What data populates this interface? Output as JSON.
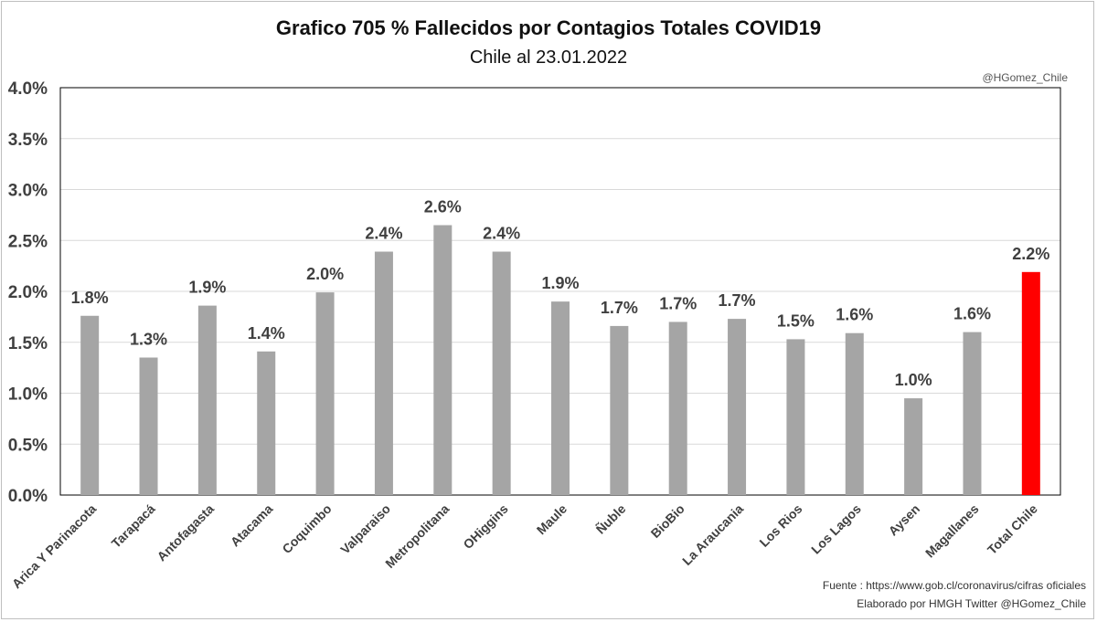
{
  "chart_data": {
    "type": "bar",
    "title": "Grafico 705 % Fallecidos por Contagios Totales COVID19",
    "subtitle": "Chile al 23.01.2022",
    "watermark": "@HGomez_Chile",
    "xlabel": "",
    "ylabel": "",
    "ylim": [
      0,
      4.0
    ],
    "yticks": [
      "0.0%",
      "0.5%",
      "1.0%",
      "1.5%",
      "2.0%",
      "2.5%",
      "3.0%",
      "3.5%",
      "4.0%"
    ],
    "ytick_values": [
      0,
      0.5,
      1.0,
      1.5,
      2.0,
      2.5,
      3.0,
      3.5,
      4.0
    ],
    "grid": true,
    "categories": [
      "Arica Y Parinacota",
      "Tarapacá",
      "Antofagasta",
      "Atacama",
      "Coquimbo",
      "Valparaiso",
      "Metropolitana",
      "OHiggins",
      "Maule",
      "Ñuble",
      "BioBio",
      "La Araucania",
      "Los Rios",
      "Los Lagos",
      "Aysen",
      "Magallanes",
      "Total Chile"
    ],
    "values": [
      1.76,
      1.35,
      1.86,
      1.41,
      1.99,
      2.39,
      2.65,
      2.39,
      1.9,
      1.66,
      1.7,
      1.73,
      1.53,
      1.59,
      0.95,
      1.6,
      2.19
    ],
    "value_labels": [
      "1.8%",
      "1.3%",
      "1.9%",
      "1.4%",
      "2.0%",
      "2.4%",
      "2.6%",
      "2.4%",
      "1.9%",
      "1.7%",
      "1.7%",
      "1.7%",
      "1.5%",
      "1.6%",
      "1.0%",
      "1.6%",
      "2.2%"
    ],
    "colors": {
      "bar": "#a5a5a5",
      "highlight": "#ff0000",
      "grid": "#d9d9d9",
      "axis": "#000000"
    },
    "highlight_index": 16
  },
  "footer": {
    "source": "Fuente   : https://www.gob.cl/coronavirus/cifras oficiales",
    "credit": "Elaborado por  HMGH  Twitter  @HGomez_Chile"
  }
}
